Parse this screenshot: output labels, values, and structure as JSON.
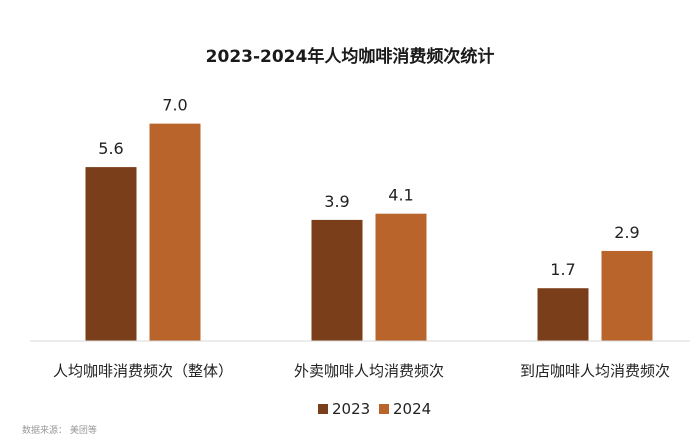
{
  "chart_data": {
    "type": "bar",
    "title": "2023-2024年人均咖啡消费频次统计",
    "categories": [
      "人均咖啡消费频次（整体）",
      "外卖咖啡人均消费频次",
      "到店咖啡人均消费频次"
    ],
    "series": [
      {
        "name": "2023",
        "values": [
          5.6,
          3.9,
          1.7
        ],
        "value_labels": [
          "5.6",
          "3.9",
          "1.7"
        ],
        "color": "#7a3f1a"
      },
      {
        "name": "2024",
        "values": [
          7.0,
          4.1,
          2.9
        ],
        "value_labels": [
          "7.0",
          "4.1",
          "2.9"
        ],
        "color": "#b8642b"
      }
    ],
    "ylim": [
      0,
      7.6
    ],
    "grid": false,
    "legend": "bottom-center",
    "source": "数据来源： 美团等"
  }
}
